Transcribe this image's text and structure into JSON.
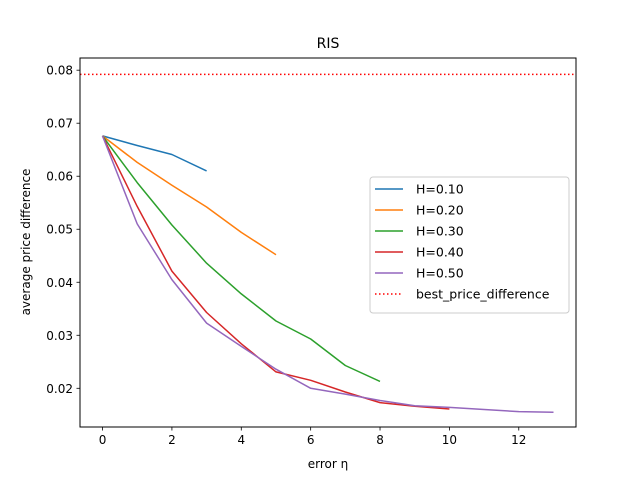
{
  "chart_data": {
    "type": "line",
    "title": "RIS",
    "xlabel": "error η",
    "ylabel": "average price difference",
    "xlim": [
      -0.65,
      13.65
    ],
    "ylim": [
      0.0127,
      0.0823
    ],
    "xticks": [
      0,
      2,
      4,
      6,
      8,
      10,
      12
    ],
    "yticks": [
      0.02,
      0.03,
      0.04,
      0.05,
      0.06,
      0.07,
      0.08
    ],
    "xtick_labels": [
      "0",
      "2",
      "4",
      "6",
      "8",
      "10",
      "12"
    ],
    "ytick_labels": [
      "0.02",
      "0.03",
      "0.04",
      "0.05",
      "0.06",
      "0.07",
      "0.08"
    ],
    "grid": false,
    "legend_position": "center-right",
    "series": [
      {
        "name": "H=0.10",
        "color": "#1f77b4",
        "style": "solid",
        "x": [
          0,
          1,
          2,
          3
        ],
        "y": [
          0.0676,
          0.0658,
          0.0641,
          0.061
        ]
      },
      {
        "name": "H=0.20",
        "color": "#ff7f0e",
        "style": "solid",
        "x": [
          0,
          1,
          2,
          3,
          4,
          5
        ],
        "y": [
          0.0676,
          0.0626,
          0.0583,
          0.0542,
          0.0494,
          0.0452
        ]
      },
      {
        "name": "H=0.30",
        "color": "#2ca02c",
        "style": "solid",
        "x": [
          0,
          1,
          2,
          3,
          4,
          5,
          6,
          7,
          8
        ],
        "y": [
          0.0676,
          0.0588,
          0.0508,
          0.0436,
          0.0378,
          0.0327,
          0.0293,
          0.0243,
          0.0213
        ]
      },
      {
        "name": "H=0.40",
        "color": "#d62728",
        "style": "solid",
        "x": [
          0,
          1,
          2,
          3,
          4,
          5,
          6,
          7,
          8,
          9,
          10
        ],
        "y": [
          0.0676,
          0.0543,
          0.0421,
          0.0343,
          0.0284,
          0.0231,
          0.0215,
          0.0193,
          0.0173,
          0.0166,
          0.0161
        ]
      },
      {
        "name": "H=0.50",
        "color": "#9467bd",
        "style": "solid",
        "x": [
          0,
          1,
          2,
          3,
          4,
          5,
          6,
          7,
          8,
          9,
          10,
          11,
          12,
          13
        ],
        "y": [
          0.0676,
          0.051,
          0.0405,
          0.0323,
          0.0279,
          0.0236,
          0.02,
          0.0189,
          0.0177,
          0.0167,
          0.0164,
          0.016,
          0.0156,
          0.0155
        ]
      },
      {
        "name": "best_price_difference",
        "color": "#ff0000",
        "style": "dotted",
        "y_const": 0.0792
      }
    ]
  }
}
